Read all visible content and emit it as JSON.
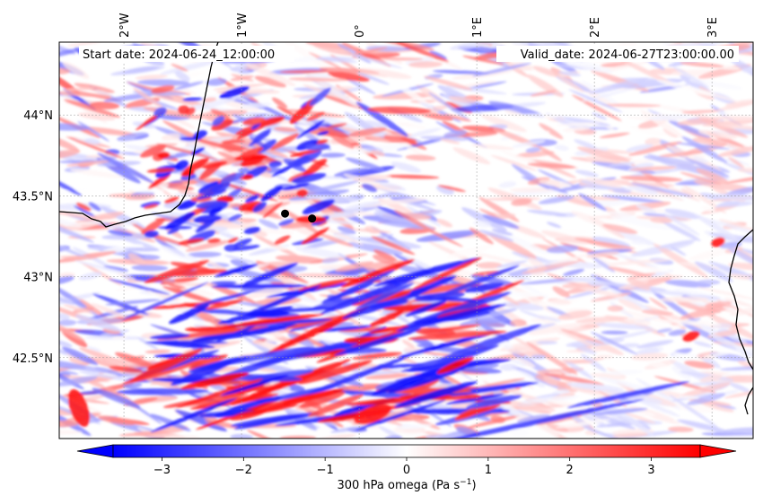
{
  "header": {
    "start_date": "Start date: 2024-06-24_12:00:00",
    "valid_date": "Valid_date: 2024-06-27T23:00:00.00"
  },
  "map": {
    "lon_range": [
      -2.55,
      3.35
    ],
    "lat_range": [
      42.0,
      44.45
    ],
    "lon_ticks": [
      {
        "value": -2,
        "label": "2°W"
      },
      {
        "value": -1,
        "label": "1°W"
      },
      {
        "value": 0,
        "label": "0°"
      },
      {
        "value": 1,
        "label": "1°E"
      },
      {
        "value": 2,
        "label": "2°E"
      },
      {
        "value": 3,
        "label": "3°E"
      }
    ],
    "lat_ticks": [
      {
        "value": 44.0,
        "label": "44°N"
      },
      {
        "value": 43.5,
        "label": "43.5°N"
      },
      {
        "value": 43.0,
        "label": "43°N"
      },
      {
        "value": 42.5,
        "label": "42.5°N"
      }
    ],
    "points": [
      {
        "lon": -0.63,
        "lat": 43.39
      },
      {
        "lon": -0.4,
        "lat": 43.36
      }
    ],
    "field": "300 hPa omega",
    "colormap": "bwr"
  },
  "colorbar": {
    "vmin": -3.6,
    "vmax": 3.6,
    "ticks": [
      -3,
      -2,
      -1,
      0,
      1,
      2,
      3
    ],
    "tick_labels": [
      "−3",
      "−2",
      "−1",
      "0",
      "1",
      "2",
      "3"
    ],
    "label": "300 hPa omega (Pa s",
    "label_sup": "−1",
    "label_end": ")",
    "extend": "both",
    "low_color": "#0000ff",
    "mid_color": "#ffffff",
    "high_color": "#ff0000"
  }
}
